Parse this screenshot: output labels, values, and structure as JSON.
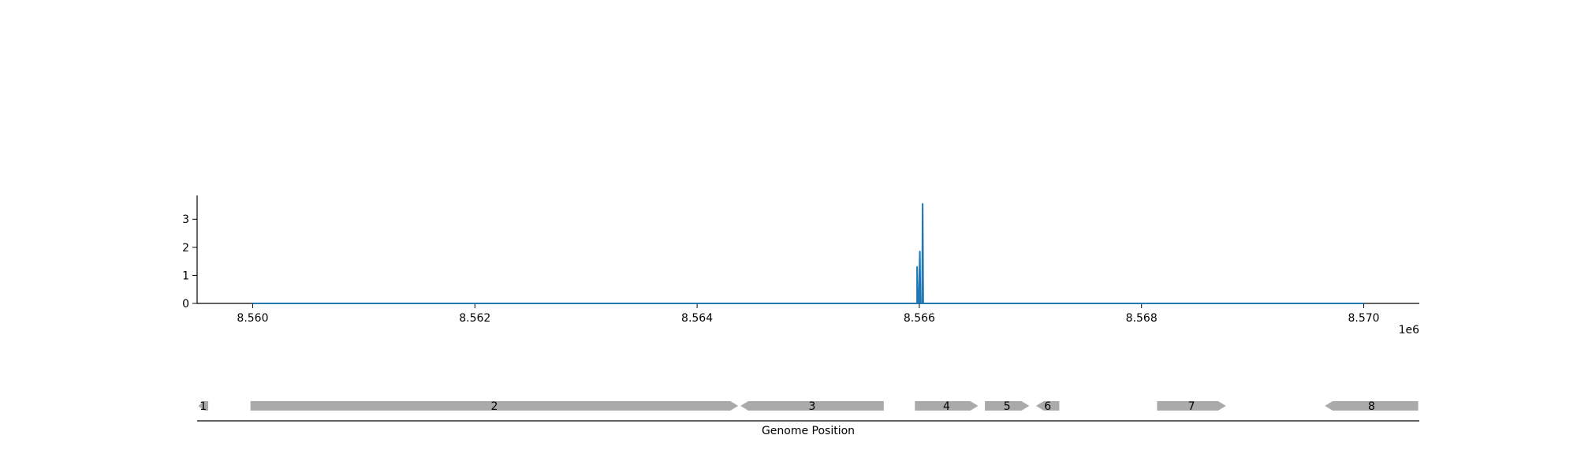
{
  "chart_data": [
    {
      "type": "line",
      "title": "",
      "xlabel": "",
      "ylabel": "",
      "xlim": [
        8559500,
        8570500
      ],
      "ylim": [
        0,
        3.85
      ],
      "x_offset_label": "1e6",
      "x_ticks": [
        8560000,
        8562000,
        8564000,
        8566000,
        8568000,
        8570000
      ],
      "x_tick_labels": [
        "8.560",
        "8.562",
        "8.564",
        "8.566",
        "8.568",
        "8.570"
      ],
      "y_ticks": [
        0,
        1,
        2,
        3
      ],
      "y_tick_labels": [
        "0",
        "1",
        "2",
        "3"
      ],
      "grid": false,
      "color": "#1f77b4",
      "series": [
        {
          "x": [
            8560000,
            8565980,
            8565980,
            8565985,
            8565990,
            8565995,
            8566005,
            8566010,
            8566015,
            8566020,
            8566025,
            8566030,
            8566035,
            8566040,
            8566045,
            8566050,
            8570000
          ],
          "y": [
            0,
            0,
            1.3,
            0,
            0,
            0,
            1.85,
            0,
            0,
            0,
            0,
            3.55,
            0,
            0,
            0,
            0,
            0
          ]
        }
      ]
    },
    {
      "type": "gene_track",
      "xlabel": "Genome Position",
      "xlim": [
        8559500,
        8570500
      ],
      "color": "#aaaaaa",
      "genes": [
        {
          "label": "1",
          "start": 8559510,
          "end": 8559600,
          "strand": "-"
        },
        {
          "label": "2",
          "start": 8559980,
          "end": 8564370,
          "strand": "+"
        },
        {
          "label": "3",
          "start": 8564390,
          "end": 8565680,
          "strand": "-"
        },
        {
          "label": "4",
          "start": 8565960,
          "end": 8566530,
          "strand": "+"
        },
        {
          "label": "5",
          "start": 8566590,
          "end": 8566990,
          "strand": "+"
        },
        {
          "label": "6",
          "start": 8567050,
          "end": 8567260,
          "strand": "-"
        },
        {
          "label": "7",
          "start": 8568140,
          "end": 8568760,
          "strand": "+"
        },
        {
          "label": "8",
          "start": 8569650,
          "end": 8570490,
          "strand": "-"
        }
      ]
    }
  ]
}
